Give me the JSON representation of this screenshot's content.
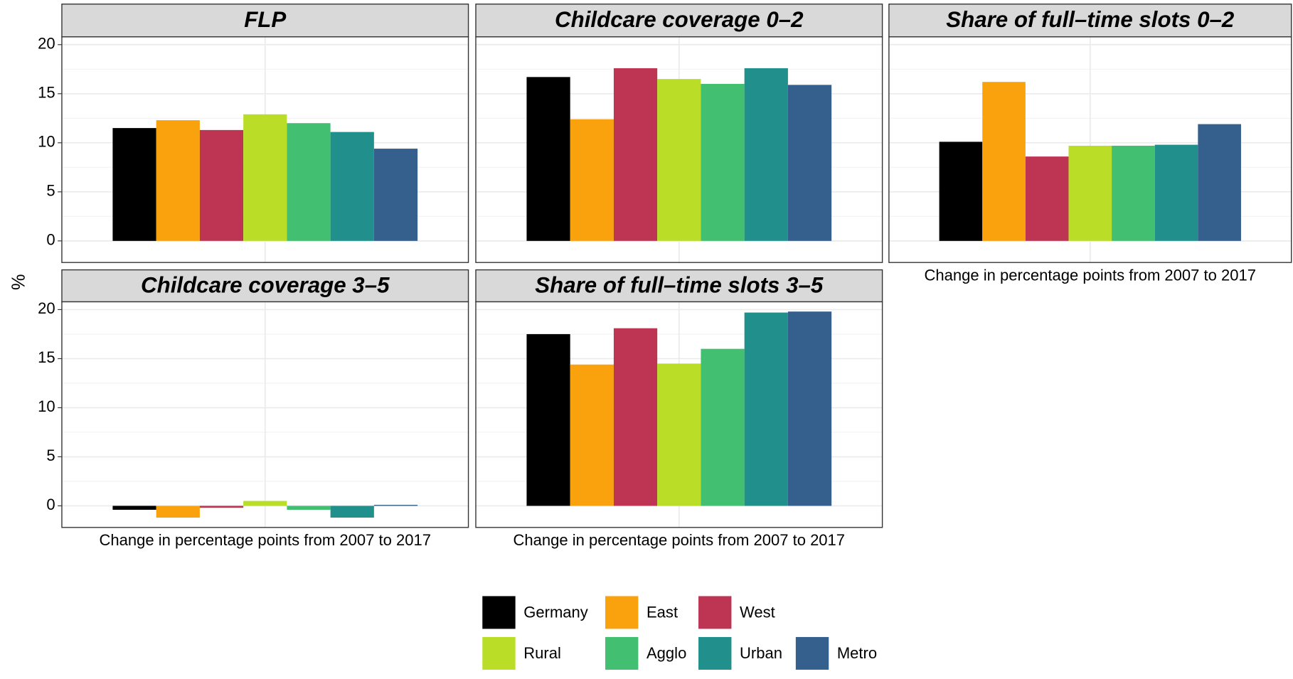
{
  "ylabel": "%",
  "legend": {
    "names": [
      "Germany",
      "East",
      "West",
      "Rural",
      "Agglo",
      "Urban",
      "Metro"
    ],
    "colors": [
      "#000000",
      "#f9a20e",
      "#bd3553",
      "#bade28",
      "#43bf71",
      "#21908d",
      "#35608d"
    ]
  },
  "chart_data": [
    {
      "type": "bar",
      "title": "FLP",
      "values": [
        11.5,
        12.3,
        11.3,
        12.9,
        12.0,
        11.1,
        9.4
      ],
      "ylim": [
        -2.2,
        20.8
      ],
      "yticks": [
        0,
        5,
        10,
        15,
        20
      ],
      "grid": true
    },
    {
      "type": "bar",
      "title": "Childcare coverage 0–2",
      "values": [
        16.7,
        12.4,
        17.6,
        16.5,
        16.0,
        17.6,
        15.9
      ],
      "ylim": [
        -2.2,
        20.8
      ],
      "yticks": [
        0,
        5,
        10,
        15,
        20
      ],
      "grid": true
    },
    {
      "type": "bar",
      "title": "Share of full–time slots 0–2",
      "xlabel": "Change in percentage points from 2007 to 2017",
      "values": [
        10.1,
        16.2,
        8.6,
        9.7,
        9.7,
        9.8,
        11.9
      ],
      "ylim": [
        -2.2,
        20.8
      ],
      "yticks": [
        0,
        5,
        10,
        15,
        20
      ],
      "grid": true
    },
    {
      "type": "bar",
      "title": "Childcare coverage 3–5",
      "xlabel": "Change in percentage points from 2007 to 2017",
      "values": [
        -0.4,
        -1.2,
        -0.2,
        0.5,
        -0.4,
        -1.2,
        0.1
      ],
      "ylim": [
        -2.2,
        20.8
      ],
      "yticks": [
        0,
        5,
        10,
        15,
        20
      ],
      "grid": true
    },
    {
      "type": "bar",
      "title": "Share of full–time slots 3–5",
      "xlabel": "Change in percentage points from 2007 to 2017",
      "values": [
        17.5,
        14.4,
        18.1,
        14.5,
        16.0,
        19.7,
        19.8
      ],
      "ylim": [
        -2.2,
        20.8
      ],
      "yticks": [
        0,
        5,
        10,
        15,
        20
      ],
      "grid": true
    }
  ]
}
